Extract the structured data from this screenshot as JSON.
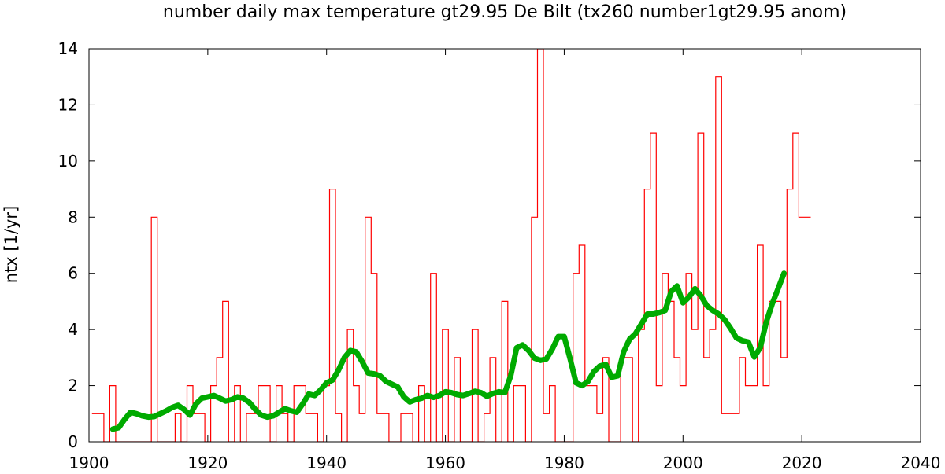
{
  "chart_data": {
    "type": "line",
    "title": "number daily max temperature gt29.95 De Bilt (tx260 number1gt29.95 anom)",
    "xlabel": "",
    "ylabel": "ntx [1/yr]",
    "xlim": [
      1900,
      2040
    ],
    "ylim": [
      0,
      14
    ],
    "xticks": [
      1900,
      1920,
      1940,
      1960,
      1980,
      2000,
      2020,
      2040
    ],
    "yticks": [
      0,
      2,
      4,
      6,
      8,
      10,
      12,
      14
    ],
    "grid": false,
    "legend": "none",
    "series": [
      {
        "style": "step",
        "color": "#ff0000",
        "x": [
          1901,
          1902,
          1903,
          1904,
          1905,
          1906,
          1907,
          1908,
          1909,
          1910,
          1911,
          1912,
          1913,
          1914,
          1915,
          1916,
          1917,
          1918,
          1919,
          1920,
          1921,
          1922,
          1923,
          1924,
          1925,
          1926,
          1927,
          1928,
          1929,
          1930,
          1931,
          1932,
          1933,
          1934,
          1935,
          1936,
          1937,
          1938,
          1939,
          1940,
          1941,
          1942,
          1943,
          1944,
          1945,
          1946,
          1947,
          1948,
          1949,
          1950,
          1951,
          1952,
          1953,
          1954,
          1955,
          1956,
          1957,
          1958,
          1959,
          1960,
          1961,
          1962,
          1963,
          1964,
          1965,
          1966,
          1967,
          1968,
          1969,
          1970,
          1971,
          1972,
          1973,
          1974,
          1975,
          1976,
          1977,
          1978,
          1979,
          1980,
          1981,
          1982,
          1983,
          1984,
          1985,
          1986,
          1987,
          1988,
          1989,
          1990,
          1991,
          1992,
          1993,
          1994,
          1995,
          1996,
          1997,
          1998,
          1999,
          2000,
          2001,
          2002,
          2003,
          2004,
          2005,
          2006,
          2007,
          2008,
          2009,
          2010,
          2011,
          2012,
          2013,
          2014,
          2015,
          2016,
          2017,
          2018,
          2019,
          2020,
          2021
        ],
        "values": [
          1,
          1,
          0,
          2,
          0,
          0,
          0,
          0,
          0,
          0,
          8,
          0,
          0,
          0,
          1,
          0,
          2,
          1,
          1,
          0,
          2,
          3,
          5,
          0,
          2,
          0,
          1,
          1,
          2,
          2,
          0,
          2,
          1,
          0,
          2,
          2,
          1,
          1,
          0,
          2,
          9,
          1,
          0,
          4,
          2,
          1,
          8,
          6,
          1,
          1,
          0,
          0,
          1,
          1,
          0,
          2,
          0,
          6,
          0,
          4,
          0,
          3,
          0,
          0,
          4,
          0,
          1,
          3,
          0,
          5,
          0,
          2,
          2,
          0,
          8,
          14,
          1,
          2,
          0,
          0,
          0,
          6,
          7,
          2,
          2,
          1,
          3,
          0,
          0,
          3,
          3,
          0,
          4,
          9,
          11,
          2,
          6,
          5,
          3,
          2,
          6,
          4,
          11,
          3,
          4,
          13,
          1,
          1,
          1,
          3,
          2,
          2,
          7,
          2,
          5,
          5,
          3,
          9,
          11,
          8,
          8
        ]
      },
      {
        "style": "smooth",
        "color": "#00aa00",
        "x": [
          1904,
          1905,
          1906,
          1907,
          1908,
          1909,
          1910,
          1911,
          1912,
          1913,
          1914,
          1915,
          1916,
          1917,
          1918,
          1919,
          1920,
          1921,
          1922,
          1923,
          1924,
          1925,
          1926,
          1927,
          1928,
          1929,
          1930,
          1931,
          1932,
          1933,
          1934,
          1935,
          1936,
          1937,
          1938,
          1939,
          1940,
          1941,
          1942,
          1943,
          1944,
          1945,
          1946,
          1947,
          1948,
          1949,
          1950,
          1951,
          1952,
          1953,
          1954,
          1955,
          1956,
          1957,
          1958,
          1959,
          1960,
          1961,
          1962,
          1963,
          1964,
          1965,
          1966,
          1967,
          1968,
          1969,
          1970,
          1971,
          1972,
          1973,
          1974,
          1975,
          1976,
          1977,
          1978,
          1979,
          1980,
          1981,
          1982,
          1983,
          1984,
          1985,
          1986,
          1987,
          1988,
          1989,
          1990,
          1991,
          1992,
          1993,
          1994,
          1995,
          1996,
          1997,
          1998,
          1999,
          2000,
          2001,
          2002,
          2003,
          2004,
          2005,
          2006,
          2007,
          2008,
          2009,
          2010,
          2011,
          2012,
          2013,
          2014,
          2015,
          2016,
          2017
        ],
        "values": [
          0.45,
          0.5,
          0.8,
          1.05,
          1.0,
          0.92,
          0.88,
          0.9,
          1.0,
          1.1,
          1.22,
          1.3,
          1.15,
          0.95,
          1.35,
          1.55,
          1.6,
          1.65,
          1.55,
          1.45,
          1.5,
          1.6,
          1.55,
          1.4,
          1.15,
          0.95,
          0.88,
          0.92,
          1.05,
          1.18,
          1.1,
          1.05,
          1.35,
          1.7,
          1.65,
          1.85,
          2.1,
          2.2,
          2.55,
          3.0,
          3.25,
          3.2,
          2.85,
          2.45,
          2.42,
          2.35,
          2.15,
          2.05,
          1.95,
          1.6,
          1.42,
          1.5,
          1.55,
          1.65,
          1.58,
          1.65,
          1.78,
          1.75,
          1.68,
          1.65,
          1.72,
          1.8,
          1.75,
          1.62,
          1.72,
          1.78,
          1.75,
          2.35,
          3.35,
          3.45,
          3.25,
          2.98,
          2.9,
          2.95,
          3.3,
          3.75,
          3.75,
          2.95,
          2.1,
          2.0,
          2.15,
          2.5,
          2.7,
          2.75,
          2.3,
          2.35,
          3.2,
          3.65,
          3.85,
          4.2,
          4.55,
          4.55,
          4.6,
          4.68,
          5.35,
          5.55,
          4.95,
          5.15,
          5.45,
          5.2,
          4.85,
          4.68,
          4.55,
          4.35,
          4.05,
          3.7,
          3.6,
          3.55,
          3.02,
          3.35,
          4.25,
          4.9,
          5.45,
          6.0
        ]
      }
    ]
  }
}
